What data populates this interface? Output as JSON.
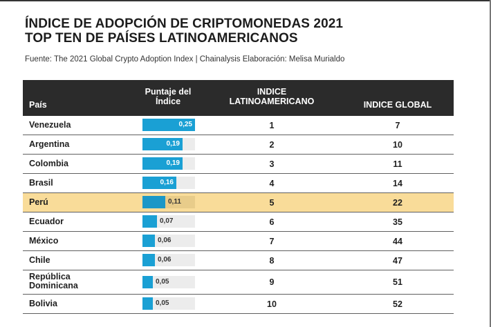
{
  "title_line1": "ÍNDICE DE ADOPCIÓN DE CRIPTOMONEDAS 2021",
  "title_line2": "TOP TEN DE PAÍSES LATINOAMERICANOS",
  "source": "Fuente: The 2021 Global Crypto Adoption Index | Chainalysis Elaboración: Melisa Murialdo",
  "headers": {
    "pais": "País",
    "puntaje": "Puntaje del Índice",
    "latam": "INDICE LATINOAMERICANO",
    "global": "INDICE GLOBAL"
  },
  "colors": {
    "header_bg": "#2b2b2b",
    "bar": "#1aa0d4",
    "highlight": "#f9dc99"
  },
  "chart_data": {
    "type": "table",
    "bar_scale_max": 0.25,
    "highlight_row": "Perú",
    "rows": [
      {
        "pais": "Venezuela",
        "puntaje": 0.25,
        "puntaje_label": "0,25",
        "latam": "1",
        "global": "7"
      },
      {
        "pais": "Argentina",
        "puntaje": 0.19,
        "puntaje_label": "0,19",
        "latam": "2",
        "global": "10"
      },
      {
        "pais": "Colombia",
        "puntaje": 0.19,
        "puntaje_label": "0,19",
        "latam": "3",
        "global": "11"
      },
      {
        "pais": "Brasil",
        "puntaje": 0.16,
        "puntaje_label": "0,16",
        "latam": "4",
        "global": "14"
      },
      {
        "pais": "Perú",
        "puntaje": 0.11,
        "puntaje_label": "0,11",
        "latam": "5",
        "global": "22"
      },
      {
        "pais": "Ecuador",
        "puntaje": 0.07,
        "puntaje_label": "0,07",
        "latam": "6",
        "global": "35"
      },
      {
        "pais": "México",
        "puntaje": 0.06,
        "puntaje_label": "0,06",
        "latam": "7",
        "global": "44"
      },
      {
        "pais": "Chile",
        "puntaje": 0.06,
        "puntaje_label": "0,06",
        "latam": "8",
        "global": "47"
      },
      {
        "pais": "República Dominicana",
        "pais_lines": [
          "República",
          "Dominicana"
        ],
        "puntaje": 0.05,
        "puntaje_label": "0,05",
        "latam": "9",
        "global": "51"
      },
      {
        "pais": "Bolivia",
        "puntaje": 0.05,
        "puntaje_label": "0,05",
        "latam": "10",
        "global": "52"
      }
    ]
  }
}
